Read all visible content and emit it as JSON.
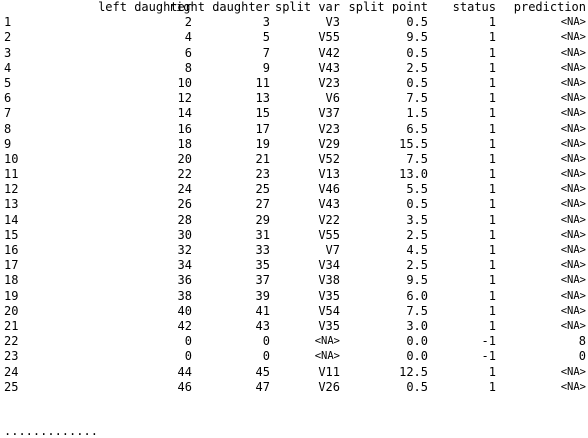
{
  "table": {
    "headers": {
      "left_daughter": "left daughter",
      "right_daughter": "right daughter",
      "split_var": "split var",
      "split_point": "split point",
      "status": "status",
      "prediction": "prediction"
    },
    "rows": [
      {
        "rn": "1",
        "ld": "2",
        "rd": "3",
        "sv": "V3",
        "sp": "0.5",
        "st": "1",
        "pr": "<NA>"
      },
      {
        "rn": "2",
        "ld": "4",
        "rd": "5",
        "sv": "V55",
        "sp": "9.5",
        "st": "1",
        "pr": "<NA>"
      },
      {
        "rn": "3",
        "ld": "6",
        "rd": "7",
        "sv": "V42",
        "sp": "0.5",
        "st": "1",
        "pr": "<NA>"
      },
      {
        "rn": "4",
        "ld": "8",
        "rd": "9",
        "sv": "V43",
        "sp": "2.5",
        "st": "1",
        "pr": "<NA>"
      },
      {
        "rn": "5",
        "ld": "10",
        "rd": "11",
        "sv": "V23",
        "sp": "0.5",
        "st": "1",
        "pr": "<NA>"
      },
      {
        "rn": "6",
        "ld": "12",
        "rd": "13",
        "sv": "V6",
        "sp": "7.5",
        "st": "1",
        "pr": "<NA>"
      },
      {
        "rn": "7",
        "ld": "14",
        "rd": "15",
        "sv": "V37",
        "sp": "1.5",
        "st": "1",
        "pr": "<NA>"
      },
      {
        "rn": "8",
        "ld": "16",
        "rd": "17",
        "sv": "V23",
        "sp": "6.5",
        "st": "1",
        "pr": "<NA>"
      },
      {
        "rn": "9",
        "ld": "18",
        "rd": "19",
        "sv": "V29",
        "sp": "15.5",
        "st": "1",
        "pr": "<NA>"
      },
      {
        "rn": "10",
        "ld": "20",
        "rd": "21",
        "sv": "V52",
        "sp": "7.5",
        "st": "1",
        "pr": "<NA>"
      },
      {
        "rn": "11",
        "ld": "22",
        "rd": "23",
        "sv": "V13",
        "sp": "13.0",
        "st": "1",
        "pr": "<NA>"
      },
      {
        "rn": "12",
        "ld": "24",
        "rd": "25",
        "sv": "V46",
        "sp": "5.5",
        "st": "1",
        "pr": "<NA>"
      },
      {
        "rn": "13",
        "ld": "26",
        "rd": "27",
        "sv": "V43",
        "sp": "0.5",
        "st": "1",
        "pr": "<NA>"
      },
      {
        "rn": "14",
        "ld": "28",
        "rd": "29",
        "sv": "V22",
        "sp": "3.5",
        "st": "1",
        "pr": "<NA>"
      },
      {
        "rn": "15",
        "ld": "30",
        "rd": "31",
        "sv": "V55",
        "sp": "2.5",
        "st": "1",
        "pr": "<NA>"
      },
      {
        "rn": "16",
        "ld": "32",
        "rd": "33",
        "sv": "V7",
        "sp": "4.5",
        "st": "1",
        "pr": "<NA>"
      },
      {
        "rn": "17",
        "ld": "34",
        "rd": "35",
        "sv": "V34",
        "sp": "2.5",
        "st": "1",
        "pr": "<NA>"
      },
      {
        "rn": "18",
        "ld": "36",
        "rd": "37",
        "sv": "V38",
        "sp": "9.5",
        "st": "1",
        "pr": "<NA>"
      },
      {
        "rn": "19",
        "ld": "38",
        "rd": "39",
        "sv": "V35",
        "sp": "6.0",
        "st": "1",
        "pr": "<NA>"
      },
      {
        "rn": "20",
        "ld": "40",
        "rd": "41",
        "sv": "V54",
        "sp": "7.5",
        "st": "1",
        "pr": "<NA>"
      },
      {
        "rn": "21",
        "ld": "42",
        "rd": "43",
        "sv": "V35",
        "sp": "3.0",
        "st": "1",
        "pr": "<NA>"
      },
      {
        "rn": "22",
        "ld": "0",
        "rd": "0",
        "sv": "<NA>",
        "sp": "0.0",
        "st": "-1",
        "pr": "8"
      },
      {
        "rn": "23",
        "ld": "0",
        "rd": "0",
        "sv": "<NA>",
        "sp": "0.0",
        "st": "-1",
        "pr": "0"
      },
      {
        "rn": "24",
        "ld": "44",
        "rd": "45",
        "sv": "V11",
        "sp": "12.5",
        "st": "1",
        "pr": "<NA>"
      },
      {
        "rn": "25",
        "ld": "46",
        "rd": "47",
        "sv": "V26",
        "sp": "0.5",
        "st": "1",
        "pr": "<NA>"
      }
    ],
    "ellipsis": "............."
  }
}
